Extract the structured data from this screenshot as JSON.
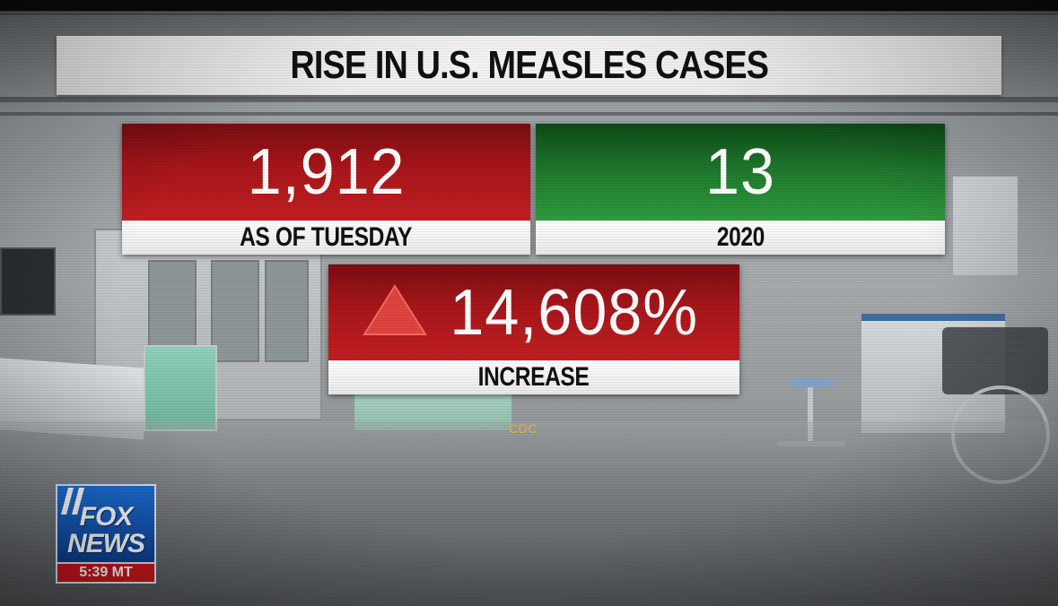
{
  "headline": "RISE IN U.S. MEASLES CASES",
  "stat_current": {
    "value": "1,912",
    "label": "AS OF TUESDAY",
    "color": "#b0191c"
  },
  "stat_previous": {
    "value": "13",
    "label": "2020",
    "color": "#24853a"
  },
  "stat_change": {
    "value": "14,608%",
    "label": "INCREASE",
    "icon": "up-triangle-icon",
    "color": "#b0191c"
  },
  "source": "CDC",
  "logo": {
    "line1": "FOX",
    "line2": "NEWS",
    "time": "5:39 MT",
    "brand_color": "#1d6fd6",
    "time_color": "#c8161c"
  }
}
